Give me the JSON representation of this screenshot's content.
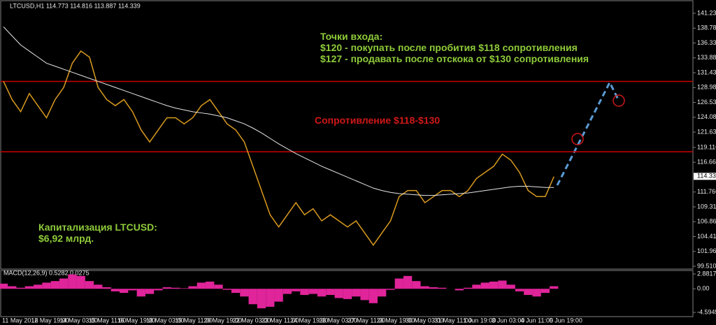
{
  "chart_data": {
    "type": "line",
    "title": "LTCUSD,H1 114.773 114.816 113.887 114.339",
    "x_labels": [
      "11 May 2018",
      "12 May 19:00",
      "14 May 03:00",
      "15 May 11:00",
      "16 May 19:00",
      "18 May 03:00",
      "19 May 11:00",
      "20 May 19:00",
      "22 May 03:00",
      "23 May 11:00",
      "24 May 19:00",
      "26 May 03:00",
      "27 May 11:00",
      "28 May 19:00",
      "30 May 03:00",
      "31 May 11:00",
      "1 Jun 19:00",
      "3 Jun 03:00",
      "4 Jun 11:00",
      "5 Jun 19:00"
    ],
    "series": [
      {
        "color": "#d99a1e",
        "values": [
          130,
          127,
          125,
          128,
          126,
          124,
          127,
          129,
          133,
          135,
          134,
          129,
          127,
          126,
          127,
          125,
          122,
          120,
          122,
          124,
          124,
          123,
          124,
          126,
          127,
          125,
          123,
          122,
          120,
          116,
          112,
          108,
          106,
          108,
          110,
          108,
          109,
          107,
          108,
          107,
          106,
          107,
          105,
          103,
          105,
          107,
          111,
          112,
          112,
          110,
          111,
          112,
          112,
          111,
          112,
          114,
          115,
          116,
          118,
          117,
          115,
          112,
          111,
          111,
          114.3
        ]
      },
      {
        "color": "#e6e6e6",
        "values": [
          139,
          137.5,
          136,
          135,
          134,
          133,
          132.5,
          132,
          131.5,
          131,
          130.5,
          130,
          129.5,
          129,
          128.5,
          128,
          127.5,
          127,
          126.5,
          126,
          125.6,
          125.3,
          125,
          124.8,
          124.6,
          124.3,
          124,
          123.5,
          123,
          122.3,
          121.5,
          120.6,
          119.7,
          118.9,
          118.1,
          117.4,
          116.7,
          116,
          115.4,
          114.8,
          114.2,
          113.6,
          113,
          112.4,
          112,
          111.7,
          111.5,
          111.4,
          111.3,
          111.2,
          111.2,
          111.3,
          111.4,
          111.5,
          111.6,
          111.8,
          112,
          112.2,
          112.4,
          112.6,
          112.7,
          112.7,
          112.6,
          112.5,
          112.5
        ]
      }
    ],
    "ylim": [
      99.51,
      141.23
    ],
    "yticks": [
      {
        "value": 141.23,
        "label": "141.230"
      },
      {
        "value": 138.78,
        "label": "138.780"
      },
      {
        "value": 136.33,
        "label": "136.330"
      },
      {
        "value": 133.88,
        "label": "133.880"
      },
      {
        "value": 131.43,
        "label": "131.430"
      },
      {
        "value": 128.98,
        "label": "128.980"
      },
      {
        "value": 126.53,
        "label": "126.530"
      },
      {
        "value": 124.08,
        "label": "124.080"
      },
      {
        "value": 121.63,
        "label": "121.630"
      },
      {
        "value": 119.11,
        "label": "119.110"
      },
      {
        "value": 116.66,
        "label": "116.660"
      },
      {
        "value": 111.76,
        "label": "111.760"
      },
      {
        "value": 109.31,
        "label": "109.310"
      },
      {
        "value": 106.86,
        "label": "106.860"
      },
      {
        "value": 104.41,
        "label": "104.410"
      },
      {
        "value": 101.96,
        "label": "101.960"
      },
      {
        "value": 99.51,
        "label": "99.510"
      }
    ],
    "last_price": 114.339,
    "levels": [
      {
        "value": 130,
        "color": "#cc0000"
      },
      {
        "value": 118.4,
        "color": "#cc0000"
      }
    ],
    "entry_text": [
      "Точки входа:",
      "$120 - покупать после пробития $118 сопротивления",
      "$127 - продавать после отскока от $130 сопротивления"
    ],
    "resistance_text": "Сопротивление $118-$130",
    "cap_text": [
      "Капитализация LTCUSD:",
      "$6,92 млрд."
    ],
    "macd": {
      "label": "MACD(12,26,9) 0.5282 0.0275",
      "color": "#e0249a",
      "values": [
        1.0,
        0.5,
        0.2,
        0.5,
        0.8,
        1.2,
        1.5,
        2.0,
        2.8,
        2.5,
        1.5,
        0.8,
        0.3,
        -0.5,
        -0.8,
        -0.3,
        -1.5,
        -1.0,
        -0.3,
        0.3,
        0.2,
        0.1,
        0.5,
        1.2,
        1.4,
        0.8,
        -0.2,
        -0.8,
        -1.5,
        -3.0,
        -3.8,
        -3.5,
        -2.5,
        -1.0,
        -0.5,
        -1.2,
        -1.0,
        -1.5,
        -1.2,
        -1.8,
        -2.0,
        -1.5,
        -2.2,
        -2.8,
        -1.5,
        -0.2,
        2.0,
        2.5,
        1.5,
        0.5,
        0.3,
        0.2,
        0.0,
        -0.3,
        0.2,
        0.8,
        1.2,
        1.4,
        1.6,
        0.8,
        -0.5,
        -1.2,
        -1.5,
        -0.8,
        0.5
      ],
      "ylim": [
        -4.5945,
        2.8817
      ],
      "yticks": [
        2.8817,
        {
          "value": 0,
          "label": "0.00"
        },
        -4.5945
      ]
    }
  }
}
